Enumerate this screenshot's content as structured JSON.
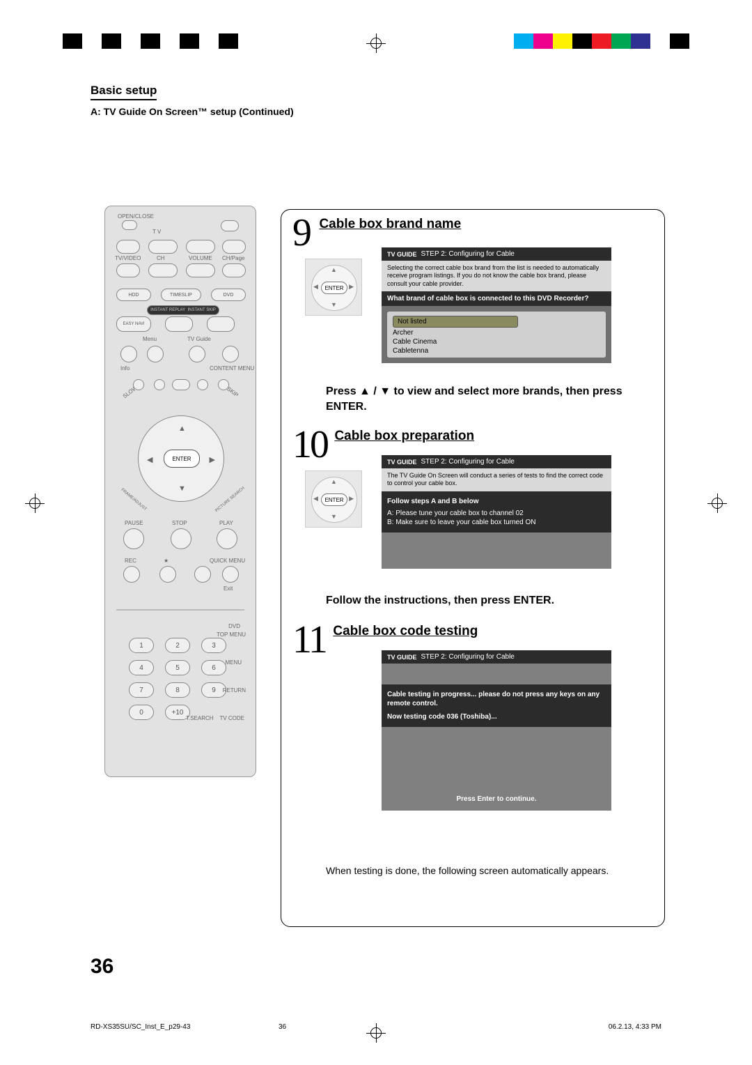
{
  "colorbars": {
    "left": [
      "#000000",
      "#ffffff",
      "#000000",
      "#ffffff",
      "#000000",
      "#ffffff",
      "#000000",
      "#ffffff",
      "#000000"
    ],
    "right": [
      "#00aeef",
      "#ec008c",
      "#fff200",
      "#000000",
      "#ed1c24",
      "#00a651",
      "#2e3192",
      "#ffffff",
      "#000000"
    ]
  },
  "header": {
    "section": "Basic setup",
    "subsection": "A: TV Guide On Screen™ setup (Continued)"
  },
  "pageNumber": "36",
  "remote": {
    "enterLabel": "ENTER",
    "topLabels": {
      "openclose": "OPEN/CLOSE",
      "tv": "T V"
    },
    "row2": {
      "tvvideo": "TV/VIDEO",
      "ch": "CH",
      "volume": "VOLUME",
      "chpage": "CH/Page"
    },
    "row3": {
      "hdd": "HDD",
      "timeslip": "TIMESLIP",
      "dvd": "DVD"
    },
    "row3b": {
      "ir": "INSTANT REPLAY",
      "is": "INSTANT SKIP",
      "easy": "EASY NAVI"
    },
    "row4": {
      "menu": "Menu",
      "tvguide": "TV Guide",
      "info": "Info",
      "content": "CONTENT MENU"
    },
    "ringLabels": {
      "slow": "SLOW",
      "skip": "SKIP",
      "frame": "FRAME/ADJUST",
      "picture": "PICTURE SEARCH"
    },
    "playback": {
      "pause": "PAUSE",
      "stop": "STOP",
      "play": "PLAY",
      "rec": "REC",
      "star": "★",
      "quick": "QUICK MENU",
      "exit": "Exit"
    },
    "numLabels": {
      "dvd": "DVD",
      "topmenu": "TOP MENU",
      "menu": "MENU",
      "return": "RETURN",
      "tsearch": "T.SEARCH",
      "tvcode": "TV CODE"
    },
    "nums": [
      "1",
      "2",
      "3",
      "4",
      "5",
      "6",
      "7",
      "8",
      "9",
      "0",
      "+10"
    ]
  },
  "steps": {
    "s9": {
      "num": "9",
      "title": "Cable box brand name",
      "enter": "ENTER",
      "screen": {
        "tvguide": "TV GUIDE",
        "bar": "STEP 2: Configuring for Cable",
        "desc": "Selecting the correct cable box brand from the list is needed to automatically receive program listings. If you do not know the cable box brand, please consult your cable provider.",
        "question": "What brand of cable box is connected to this DVD Recorder?",
        "options": [
          "Not listed",
          "Archer",
          "Cable Cinema",
          "Cabletenna"
        ]
      },
      "instruction": "Press ▲ / ▼ to view and select more brands, then press ENTER."
    },
    "s10": {
      "num": "10",
      "title": "Cable box preparation",
      "enter": "ENTER",
      "screen": {
        "tvguide": "TV GUIDE",
        "bar": "STEP 2: Configuring for Cable",
        "desc": "The TV Guide On Screen will conduct a series of tests to find the correct code to control your cable box.",
        "subhead": "Follow steps A and B below",
        "stepA": "A:  Please tune your cable box to channel 02",
        "stepB": "B:  Make sure to leave your cable box turned ON"
      },
      "instruction": "Follow the instructions, then press ENTER."
    },
    "s11": {
      "num": "11",
      "title": "Cable box code testing",
      "screen": {
        "tvguide": "TV GUIDE",
        "bar": "STEP 2: Configuring for Cable",
        "line1": "Cable testing in progress...  please do not press any keys on any remote control.",
        "line2": "Now testing code 036 (Toshiba)...",
        "footer": "Press Enter to continue."
      },
      "post": "When testing is done, the following screen automatically appears."
    }
  },
  "meta": {
    "file": "RD-XS35SU/SC_Inst_E_p29-43",
    "page": "36",
    "stamp": "06.2.13, 4:33 PM"
  }
}
